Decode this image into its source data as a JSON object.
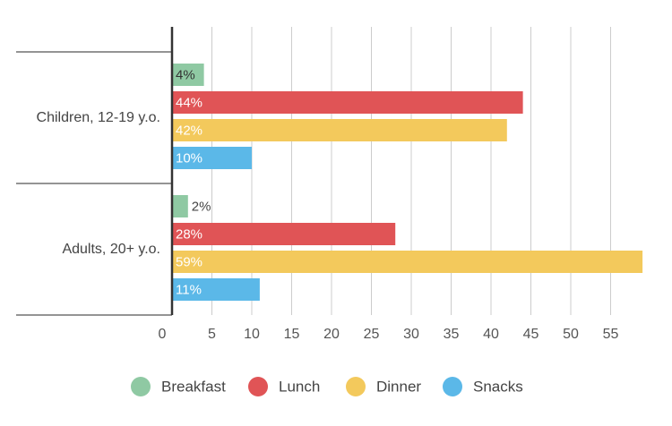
{
  "chart_data": {
    "type": "bar",
    "orientation": "horizontal",
    "title": "",
    "xlabel": "",
    "ylabel": "",
    "categories": [
      "Children, 12-19 y.o.",
      "Adults, 20+ y.o."
    ],
    "series": [
      {
        "name": "Breakfast",
        "color": "#8fc9a3",
        "values": [
          4,
          2
        ],
        "labels": [
          "4%",
          "2%"
        ]
      },
      {
        "name": "Lunch",
        "color": "#e05456",
        "values": [
          44,
          28
        ],
        "labels": [
          "44%",
          "28%"
        ]
      },
      {
        "name": "Dinner",
        "color": "#f3c95c",
        "values": [
          42,
          59
        ],
        "labels": [
          "42%",
          "59%"
        ]
      },
      {
        "name": "Snacks",
        "color": "#5bb8e8",
        "values": [
          10,
          11
        ],
        "labels": [
          "10%",
          "11%"
        ]
      }
    ],
    "xlim": [
      0,
      59
    ],
    "xticks": [
      0,
      5,
      10,
      15,
      20,
      25,
      30,
      35,
      40,
      45,
      50,
      55
    ],
    "grid": true,
    "legend_position": "bottom"
  }
}
